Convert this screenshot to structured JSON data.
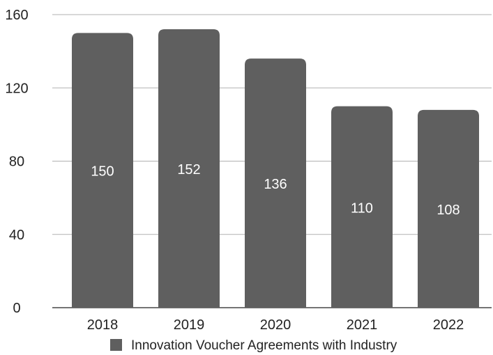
{
  "chart_data": {
    "type": "bar",
    "categories": [
      "2018",
      "2019",
      "2020",
      "2021",
      "2022"
    ],
    "series": [
      {
        "name": "Innovation Voucher Agreements with Industry",
        "values": [
          150,
          152,
          136,
          110,
          108
        ],
        "color": "#5f5f5f"
      }
    ],
    "ylim": [
      0,
      160
    ],
    "yticks": [
      "0",
      "40",
      "80",
      "120",
      "160"
    ],
    "data_labels": [
      "150",
      "152",
      "136",
      "110",
      "108"
    ],
    "grid": true,
    "legend_position": "bottom",
    "colors": {
      "bar": "#5f5f5f",
      "grid": "#b0b0b0",
      "axis": "#222222",
      "label": "#ffffff"
    }
  }
}
